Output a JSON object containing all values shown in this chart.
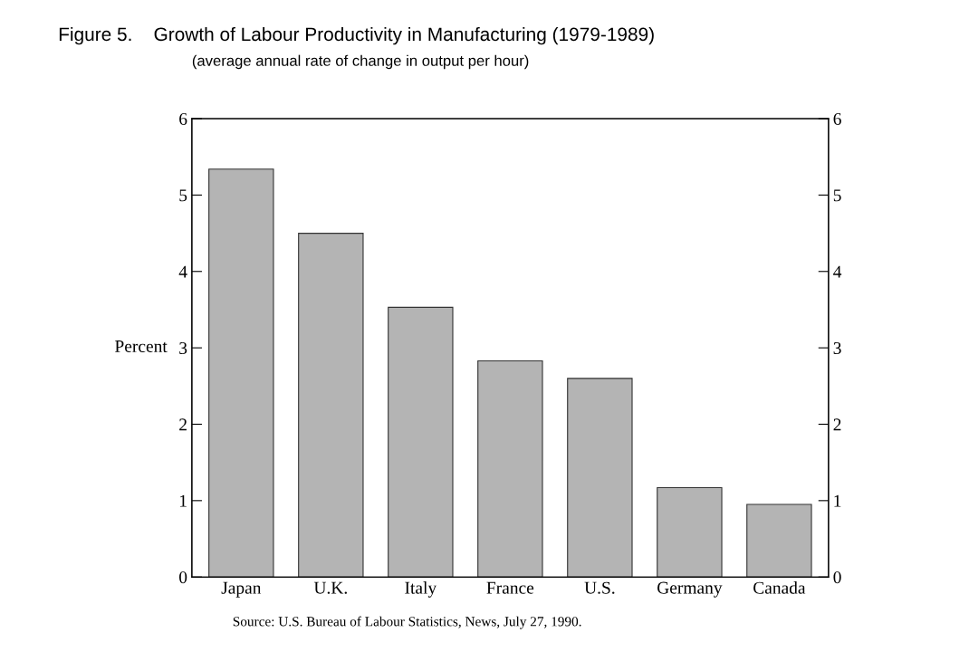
{
  "chart_data": {
    "type": "bar",
    "title": "Figure 5.    Growth of Labour Productivity in Manufacturing (1979-1989)",
    "subtitle": "(average annual rate of change in output per hour)",
    "ylabel": "Percent",
    "categories": [
      "Japan",
      "U.K.",
      "Italy",
      "France",
      "U.S.",
      "Germany",
      "Canada"
    ],
    "values": [
      5.34,
      4.5,
      3.53,
      2.83,
      2.6,
      1.17,
      0.95
    ],
    "color": "#b4b4b4",
    "ylim": [
      0,
      6
    ],
    "yticks": [
      0,
      1,
      2,
      3,
      4,
      5,
      6
    ],
    "y2lim": [
      0,
      6
    ],
    "y2ticks": [
      0,
      1,
      2,
      3,
      4,
      5,
      6
    ],
    "grid": false,
    "legend": false,
    "annotations": [
      "Source: U.S. Bureau of Labour Statistics, News, July 27, 1990."
    ]
  }
}
